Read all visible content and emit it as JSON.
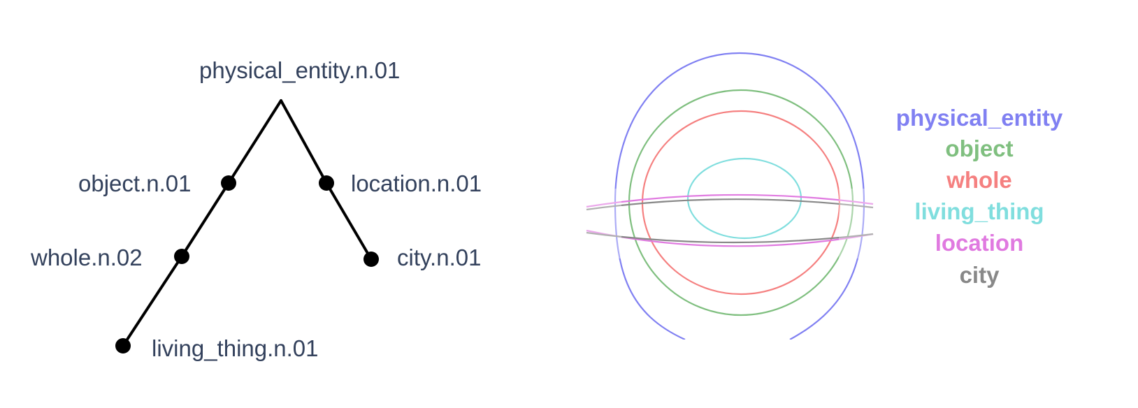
{
  "tree": {
    "root": "physical_entity.n.01",
    "nodes": {
      "object": "object.n.01",
      "whole": "whole.n.02",
      "living_thing": "living_thing.n.01",
      "location": "location.n.01",
      "city": "city.n.01"
    },
    "edges": [
      [
        "physical_entity.n.01",
        "object.n.01"
      ],
      [
        "object.n.01",
        "whole.n.02"
      ],
      [
        "whole.n.02",
        "living_thing.n.01"
      ],
      [
        "physical_entity.n.01",
        "location.n.01"
      ],
      [
        "location.n.01",
        "city.n.01"
      ]
    ]
  },
  "legend": [
    {
      "key": "physical_entity",
      "label": "physical_entity",
      "color": "#8080f2"
    },
    {
      "key": "object",
      "label": "object",
      "color": "#7fbf7f"
    },
    {
      "key": "whole",
      "label": "whole",
      "color": "#f58080"
    },
    {
      "key": "living_thing",
      "label": "living_thing",
      "color": "#80dede"
    },
    {
      "key": "location",
      "label": "location",
      "color": "#e07ae0"
    },
    {
      "key": "city",
      "label": "city",
      "color": "#888888"
    }
  ]
}
